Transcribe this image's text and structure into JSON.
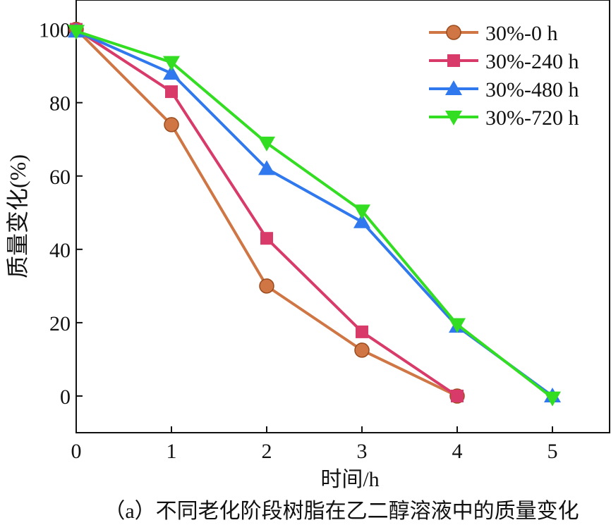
{
  "chart_data": {
    "type": "line",
    "title": "",
    "caption": "（a）不同老化阶段树脂在乙二醇溶液中的质量变化",
    "xlabel": "时间/h",
    "ylabel": "质量变化(%)",
    "xlim": [
      0,
      5.6
    ],
    "ylim": [
      -10,
      108
    ],
    "xticks": [
      0,
      1,
      2,
      3,
      4,
      5
    ],
    "yticks": [
      0,
      20,
      40,
      60,
      80,
      100
    ],
    "grid": false,
    "legend_position": "top-right",
    "series": [
      {
        "name": "30%-0 h",
        "marker": "circle",
        "color": "#cf7644",
        "x": [
          0,
          1,
          2,
          3,
          4
        ],
        "y": [
          100,
          74,
          30,
          12.5,
          0
        ]
      },
      {
        "name": "30%-240 h",
        "marker": "square",
        "color": "#d83b69",
        "x": [
          0,
          1,
          2,
          3,
          4
        ],
        "y": [
          100,
          83,
          43,
          17.5,
          0
        ]
      },
      {
        "name": "30%-480 h",
        "marker": "triangle-up",
        "color": "#2f78ee",
        "x": [
          0,
          1,
          2,
          3,
          4,
          5
        ],
        "y": [
          99.5,
          88,
          62,
          47.5,
          19,
          0
        ]
      },
      {
        "name": "30%-720 h",
        "marker": "triangle-down",
        "color": "#33dd22",
        "x": [
          0,
          1,
          2,
          3,
          4,
          5
        ],
        "y": [
          99.5,
          91,
          69,
          50.5,
          19.5,
          -0.5
        ]
      }
    ]
  }
}
